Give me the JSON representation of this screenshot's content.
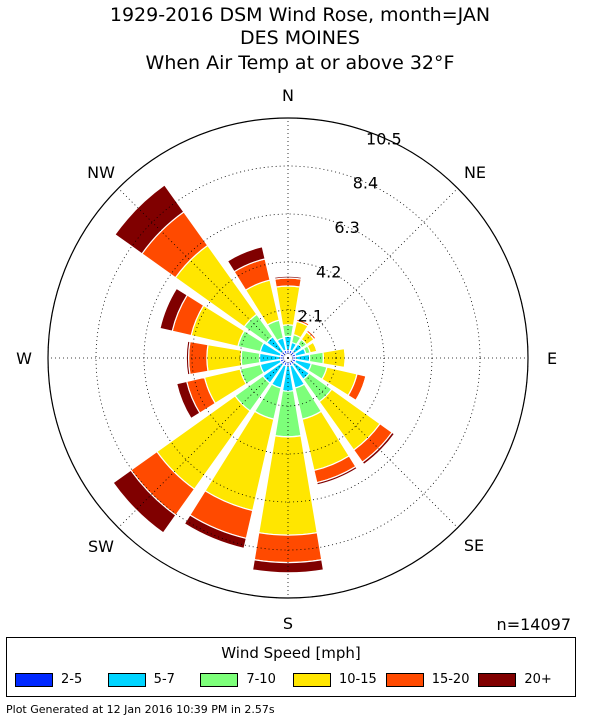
{
  "title": {
    "line1": "1929-2016 DSM Wind Rose, month=JAN",
    "line2": "DES MOINES",
    "line3": "When  Air Temp at or above 32°F"
  },
  "footer": "Plot Generated at 12 Jan 2016 10:39 PM in 2.57s",
  "n_label": "n=14097",
  "legend": {
    "title": "Wind Speed [mph]",
    "items": [
      {
        "label": "2-5",
        "color": "#0028ff"
      },
      {
        "label": "5-7",
        "color": "#00d4ff"
      },
      {
        "label": "7-10",
        "color": "#7dff7a"
      },
      {
        "label": "10-15",
        "color": "#ffe600"
      },
      {
        "label": "15-20",
        "color": "#ff4a00"
      },
      {
        "label": "20+",
        "color": "#800000"
      }
    ]
  },
  "chart_data": {
    "type": "polar-bar",
    "direction_labels": [
      "N",
      "NE",
      "E",
      "SE",
      "S",
      "SW",
      "W",
      "NW"
    ],
    "radial_ticks": [
      "2.1",
      "4.2",
      "6.3",
      "8.4",
      "10.5"
    ],
    "r_max": 10.5,
    "unit": "percent frequency (stacked)",
    "directions": [
      "N",
      "NNE",
      "NE",
      "ENE",
      "E",
      "ESE",
      "SE",
      "SSE",
      "S",
      "SSW",
      "SW",
      "WSW",
      "W",
      "WNW",
      "NW",
      "NNW"
    ],
    "series": [
      {
        "name": "2-5",
        "values": [
          0.35,
          0.35,
          0.35,
          0.35,
          0.35,
          0.35,
          0.35,
          0.35,
          0.35,
          0.35,
          0.35,
          0.35,
          0.35,
          0.35,
          0.35,
          0.35
        ]
      },
      {
        "name": "5-7",
        "values": [
          0.6,
          0.35,
          0.4,
          0.45,
          0.6,
          0.7,
          0.8,
          1.0,
          1.1,
          1.0,
          1.0,
          0.9,
          0.9,
          0.9,
          0.8,
          0.55
        ]
      },
      {
        "name": "7-10",
        "values": [
          0.5,
          0.35,
          0.25,
          0.2,
          0.6,
          0.7,
          1.2,
          1.4,
          2.0,
          1.4,
          1.5,
          0.9,
          0.8,
          1.0,
          1.2,
          0.8
        ]
      },
      {
        "name": "10-15",
        "values": [
          1.7,
          0.6,
          0.4,
          0.3,
          0.95,
          1.35,
          2.6,
          2.3,
          4.3,
          4.1,
          4.2,
          1.6,
          1.5,
          2.1,
          3.7,
          1.8
        ]
      },
      {
        "name": "15-20",
        "values": [
          0.35,
          0.1,
          0.1,
          0.05,
          0.05,
          0.4,
          0.65,
          0.55,
          1.2,
          1.25,
          1.4,
          0.8,
          0.8,
          0.85,
          1.8,
          0.95
        ]
      },
      {
        "name": "20+",
        "values": [
          0.08,
          0.02,
          0.02,
          0.02,
          0.02,
          0.05,
          0.12,
          0.1,
          0.45,
          0.45,
          0.95,
          0.45,
          0.1,
          0.55,
          1.45,
          0.55
        ]
      }
    ]
  }
}
